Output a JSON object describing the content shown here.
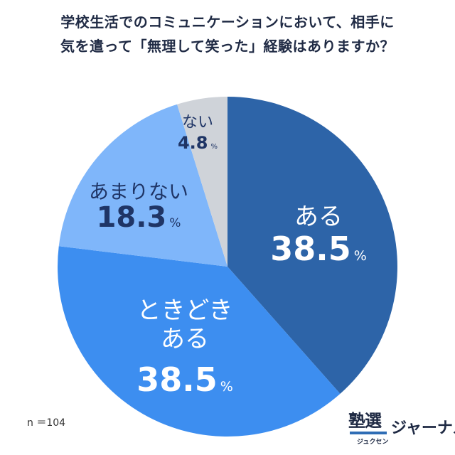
{
  "title_lines": [
    "学校生活でのコミュニケーションにおいて、相手に",
    "気を遣って「無理して笑った」経験はありますか？"
  ],
  "sample_size": "n ＝104",
  "logo": {
    "kanji": "塾選",
    "ruby": "ジュクセン",
    "kana": "ジャーナル"
  },
  "colors": {
    "aru": "#2d64a8",
    "tokidoki": "#3d8ef0",
    "amari": "#7fb6fa",
    "nai": "#cfd3d9",
    "label_light": "#ffffff",
    "label_dark": "#1f3566"
  },
  "chart_data": {
    "type": "pie",
    "title": "学校生活でのコミュニケーションにおいて、相手に気を遣って「無理して笑った」経験はありますか？",
    "unit": "%",
    "slices": [
      {
        "label_lines": [
          "ある"
        ],
        "value": 38.5,
        "value_text": "38.5"
      },
      {
        "label_lines": [
          "ときどき",
          "ある"
        ],
        "value": 38.5,
        "value_text": "38.5"
      },
      {
        "label_lines": [
          "あまりない"
        ],
        "value": 18.3,
        "value_text": "18.3"
      },
      {
        "label_lines": [
          "ない"
        ],
        "value": 4.8,
        "value_text": "4.8"
      }
    ]
  }
}
